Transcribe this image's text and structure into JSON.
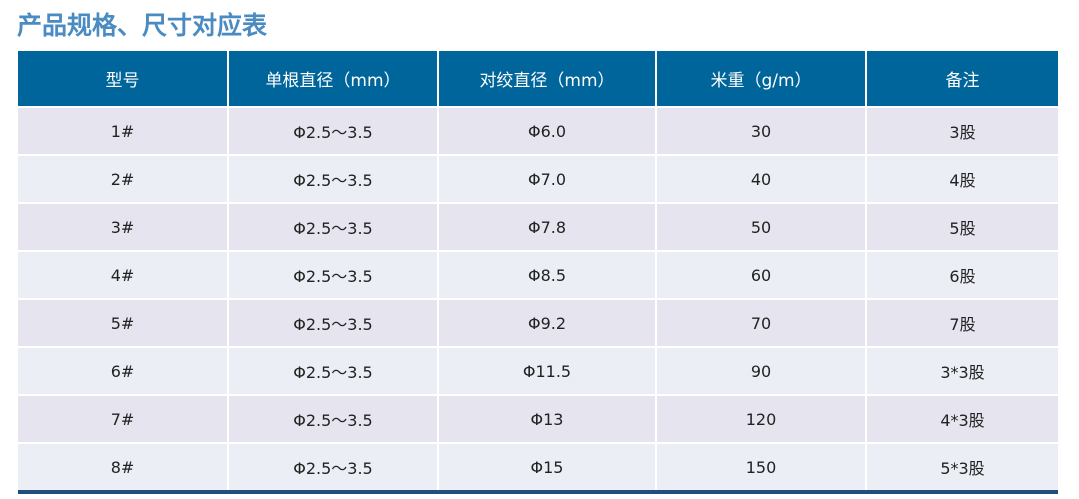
{
  "title": "产品规格、尺寸对应表",
  "colors": {
    "header": "#00659a",
    "title": "#4a8bc2",
    "row_odd": "#e6e4ee",
    "row_even": "#eceef6",
    "bottom_border": "#1f4e80"
  },
  "headers": [
    "型号",
    "单根直径（mm）",
    "对绞直径（mm）",
    "米重（g/m）",
    "备注"
  ],
  "rows": [
    [
      "1#",
      "Φ2.5～3.5",
      "Φ6.0",
      "30",
      "3股"
    ],
    [
      "2#",
      "Φ2.5～3.5",
      "Φ7.0",
      "40",
      "4股"
    ],
    [
      "3#",
      "Φ2.5～3.5",
      "Φ7.8",
      "50",
      "5股"
    ],
    [
      "4#",
      "Φ2.5～3.5",
      "Φ8.5",
      "60",
      "6股"
    ],
    [
      "5#",
      "Φ2.5～3.5",
      "Φ9.2",
      "70",
      "7股"
    ],
    [
      "6#",
      "Φ2.5～3.5",
      "Φ11.5",
      "90",
      "3*3股"
    ],
    [
      "7#",
      "Φ2.5～3.5",
      "Φ13",
      "120",
      "4*3股"
    ],
    [
      "8#",
      "Φ2.5～3.5",
      "Φ15",
      "150",
      "5*3股"
    ]
  ]
}
